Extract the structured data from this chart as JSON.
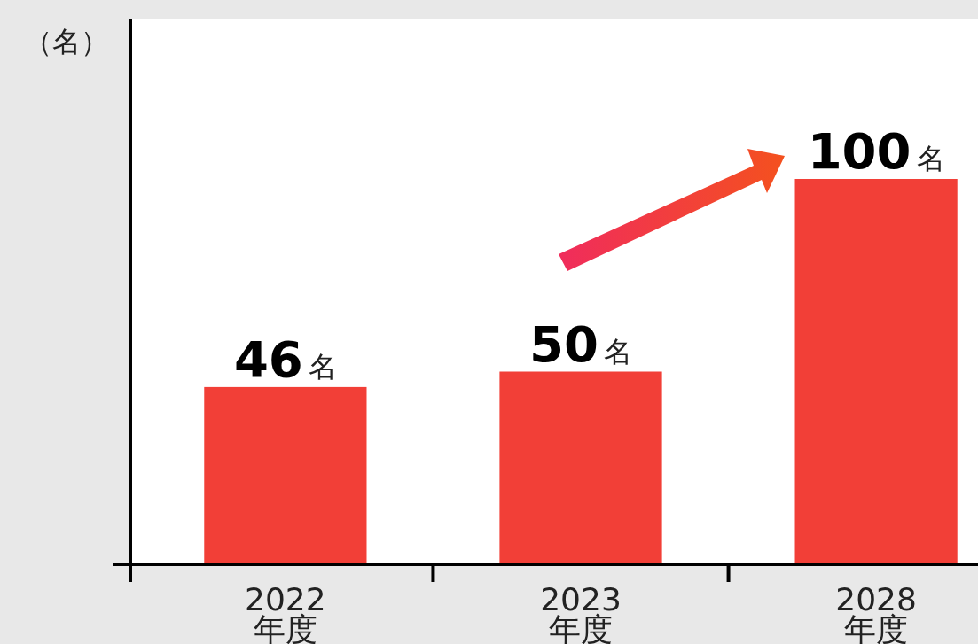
{
  "chart_data": {
    "type": "bar",
    "ylabel": "（名）",
    "categories": [
      "2022\n年度",
      "2023\n年度",
      "2028\n年度"
    ],
    "values": [
      46,
      50,
      100
    ],
    "value_labels": [
      "46名",
      "50名",
      "100名"
    ],
    "color": "#f23f37"
  }
}
